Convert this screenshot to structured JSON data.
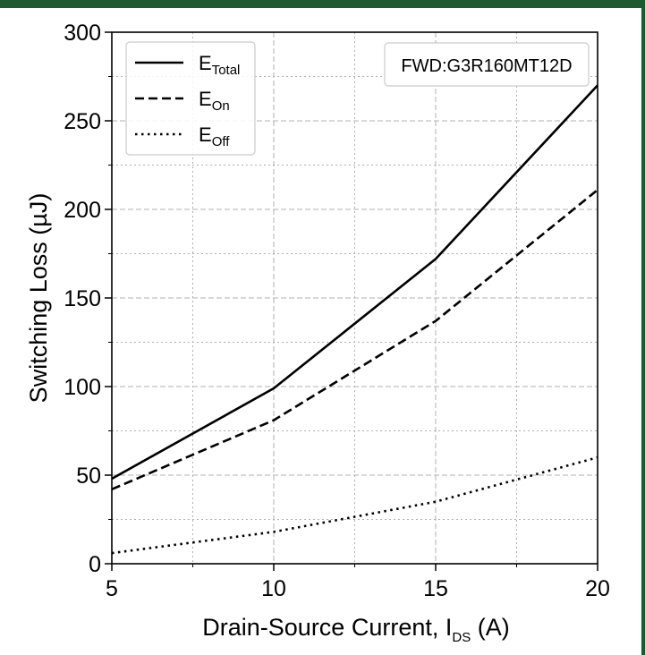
{
  "chart_data": {
    "type": "line",
    "xlabel_main": "Drain-Source Current, I",
    "xlabel_sub": "DS",
    "xlabel_unit": " (A)",
    "ylabel": "Switching Loss (µJ)",
    "xlim": [
      5,
      20
    ],
    "ylim": [
      0,
      300
    ],
    "x_ticks": [
      5,
      10,
      15,
      20
    ],
    "x_minor_ticks": [
      7.5,
      12.5,
      17.5
    ],
    "y_ticks": [
      0,
      50,
      100,
      150,
      200,
      250,
      300
    ],
    "y_minor_ticks": [
      25,
      75,
      125,
      175,
      225,
      275
    ],
    "grid": true,
    "legend_position": "top-left",
    "annotation": "FWD:G3R160MT12D",
    "series": [
      {
        "name_main": "E",
        "name_sub": "Total",
        "dash": "solid",
        "x": [
          5,
          10,
          15,
          20
        ],
        "y": [
          48,
          99,
          172,
          270
        ]
      },
      {
        "name_main": "E",
        "name_sub": "On",
        "dash": "dashed",
        "x": [
          5,
          10,
          15,
          20
        ],
        "y": [
          42,
          81,
          137,
          211
        ]
      },
      {
        "name_main": "E",
        "name_sub": "Off",
        "dash": "dotted",
        "x": [
          5,
          10,
          15,
          20
        ],
        "y": [
          6,
          18,
          35,
          60
        ]
      }
    ]
  },
  "colors": {
    "frame": "#1e5a30",
    "line": "#000000",
    "grid": "#b0b0b0"
  }
}
